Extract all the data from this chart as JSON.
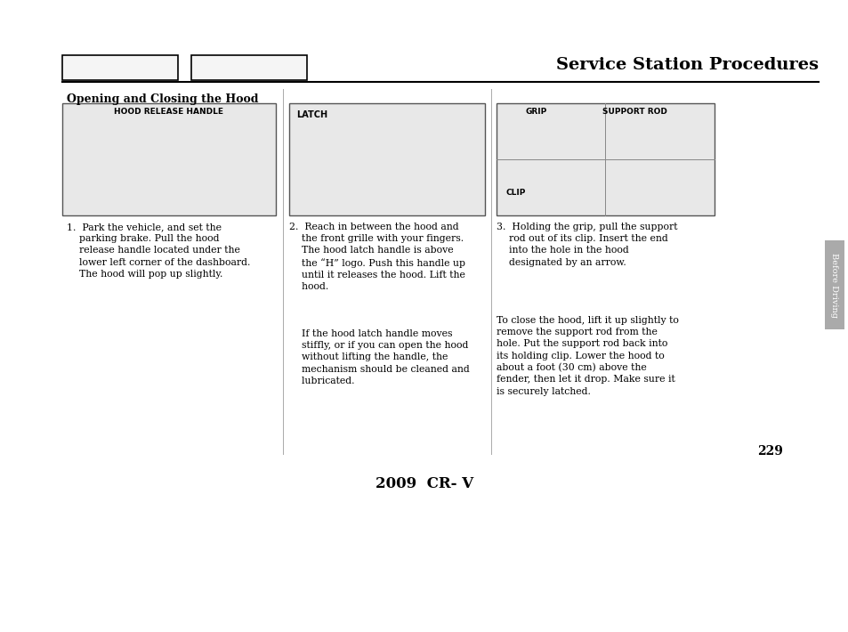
{
  "title": "Service Station Procedures",
  "section_title": "Opening and Closing the Hood",
  "page_number": "229",
  "footer_text": "2009  CR- V",
  "sidebar_text": "Before Driving",
  "bg_color": "#ffffff",
  "box1_label": "HOOD RELEASE HANDLE",
  "box2_label": "LATCH",
  "box3_label1": "GRIP",
  "box3_label2": "SUPPORT ROD",
  "box3_label3": "CLIP",
  "para1": "1. Park the vehicle, and set the\n    parking brake. Pull the hood\n    release handle located under the\n    lower left corner of the dashboard.\n    The hood will pop up slightly.",
  "para2_a": "2. Reach in between the hood and\n    the front grille with your fingers.\n    The hood latch handle is above\n    the “H” logo. Push this handle up\n    until it releases the hood. Lift the\n    hood.",
  "para2_b": "    If the hood latch handle moves\n    stiffly, or if you can open the hood\n    without lifting the handle, the\n    mechanism should be cleaned and\n    lubricated.",
  "para3_a": "3. Holding the grip, pull the support\n    rod out of its clip. Insert the end\n    into the hole in the hood\n    designated by an arrow.",
  "para3_b": "To close the hood, lift it up slightly to\nremove the support rod from the\nhole. Put the support rod back into\nits holding clip. Lower the hood to\nabout a foot (30 cm) above the\nfender, then let it drop. Make sure it\nis securely latched.",
  "image_bg": "#e8e8e8",
  "line_color": "#000000",
  "tab_color": "#aaaaaa"
}
